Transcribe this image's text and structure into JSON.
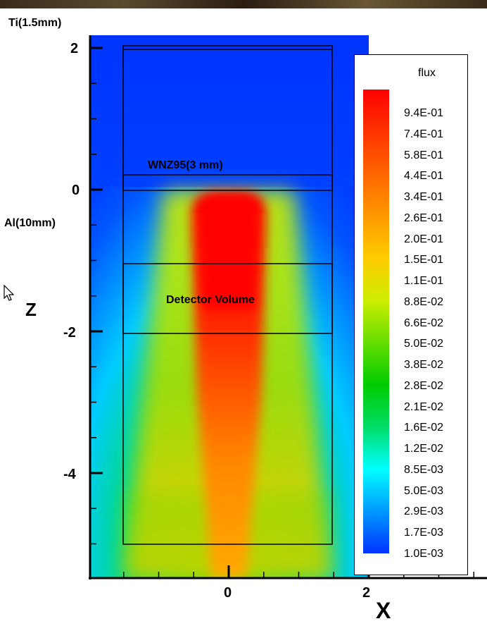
{
  "chart_data": {
    "type": "heatmap",
    "title": "",
    "xlabel": "X",
    "ylabel": "Z",
    "xlim": [
      -2,
      2
    ],
    "ylim": [
      -5.4,
      2.1
    ],
    "x_ticks": [
      "0",
      "2"
    ],
    "y_ticks": [
      "2",
      "0",
      "-2",
      "-4"
    ],
    "colorbar": {
      "title": "flux",
      "scale": "log",
      "range": [
        0.001,
        1.0
      ],
      "levels": [
        "9.4E-01",
        "7.4E-01",
        "5.8E-01",
        "4.4E-01",
        "3.4E-01",
        "2.6E-01",
        "2.0E-01",
        "1.5E-01",
        "1.1E-01",
        "8.8E-02",
        "6.6E-02",
        "5.0E-02",
        "3.8E-02",
        "2.8E-02",
        "2.1E-02",
        "1.6E-02",
        "1.2E-02",
        "8.5E-03",
        "5.0E-03",
        "2.9E-03",
        "1.7E-03",
        "1.0E-03"
      ],
      "colors": [
        "#ff0000",
        "#ff3300",
        "#ff6600",
        "#ff9900",
        "#ffcc00",
        "#ccee00",
        "#66dd00",
        "#00cc00",
        "#00dd66",
        "#00ffff",
        "#0099ff",
        "#0033ff"
      ]
    },
    "regions": [
      {
        "label": "WNZ95(3 mm)",
        "x": [
          -1.5,
          1.5
        ],
        "z": [
          -0.02,
          0.2
        ]
      },
      {
        "label": "Detector Volume",
        "x": [
          -1.5,
          1.5
        ],
        "z": [
          -2.0,
          -1.0
        ]
      },
      {
        "label": "",
        "x": [
          -1.5,
          1.5
        ],
        "z": [
          -5.0,
          2.05
        ]
      }
    ],
    "annotations": [
      {
        "text": "Ti(1.5mm)",
        "region": "top-left"
      },
      {
        "text": "Al(10mm)",
        "region": "left"
      }
    ]
  }
}
